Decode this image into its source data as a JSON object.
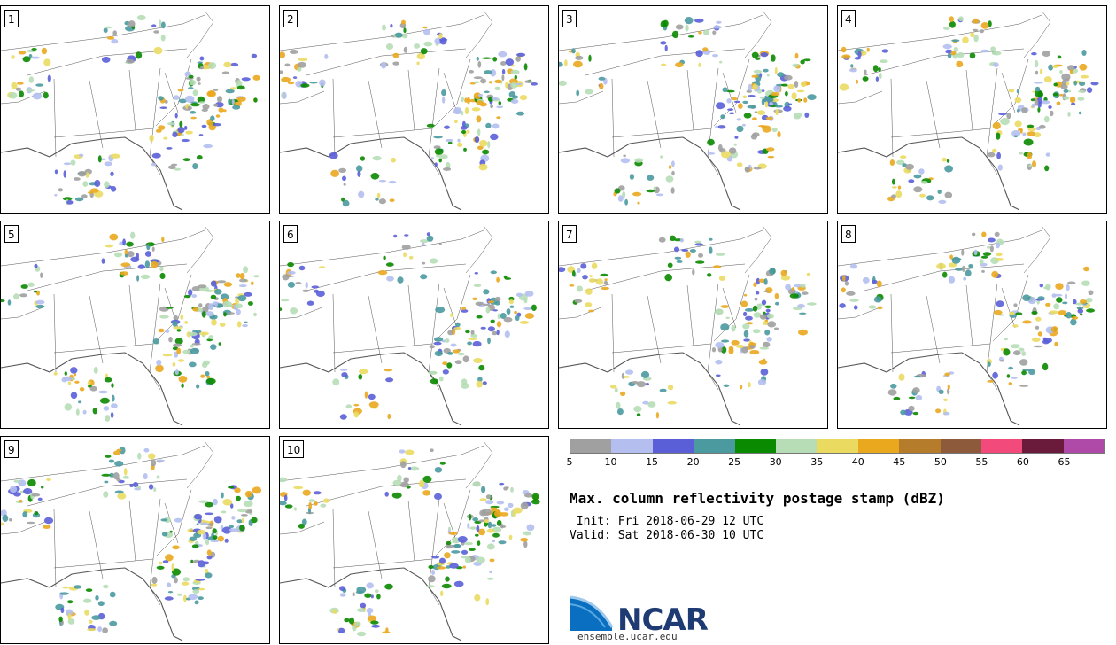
{
  "panels": [
    {
      "label": "1"
    },
    {
      "label": "2"
    },
    {
      "label": "3"
    },
    {
      "label": "4"
    },
    {
      "label": "5"
    },
    {
      "label": "6"
    },
    {
      "label": "7"
    },
    {
      "label": "8"
    },
    {
      "label": "9"
    },
    {
      "label": "10"
    }
  ],
  "colorbar": {
    "colors": [
      "#a0a0a0",
      "#b4bff0",
      "#5a5fd8",
      "#4a9aa0",
      "#0a8a00",
      "#b6ddb6",
      "#eada60",
      "#eaa81e",
      "#b57c2c",
      "#8e5a3c",
      "#f24a7a",
      "#6a1a3a",
      "#b04aa8"
    ],
    "ticks": [
      "5",
      "10",
      "15",
      "20",
      "25",
      "30",
      "35",
      "40",
      "45",
      "50",
      "55",
      "60",
      "65"
    ]
  },
  "title": "Max. column reflectivity postage stamp (dBZ)",
  "init": " Init: Fri 2018-06-29 12 UTC",
  "valid": "Valid: Sat 2018-06-30 10 UTC",
  "logo": {
    "text": "NCAR",
    "site": "ensemble.ucar.edu",
    "color": "#1f3b73"
  }
}
